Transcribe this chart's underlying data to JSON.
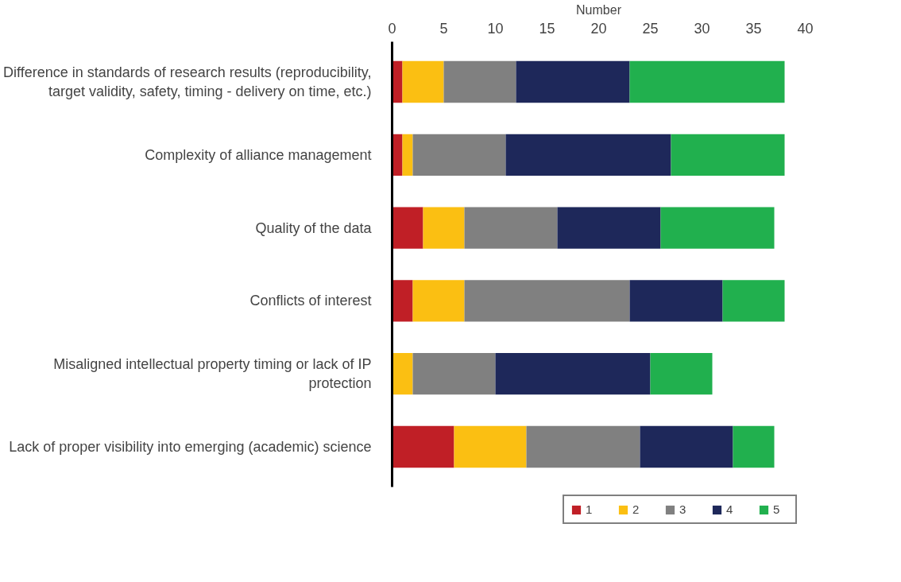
{
  "chart_data": {
    "type": "bar",
    "orientation": "horizontal",
    "stacked": true,
    "xlabel": "Number",
    "categories": [
      "Difference in standards of research results (reproducibility, target validity, safety, timing - delivery on time, etc.)",
      "Complexity of alliance management",
      "Quality of the data",
      "Conflicts of interest",
      "Misaligned intellectual property timing or lack of IP protection",
      "Lack of proper visibility into emerging (academic) science"
    ],
    "series": [
      {
        "name": "1",
        "color": "#c01f26",
        "values": [
          1,
          1,
          3,
          2,
          0,
          6
        ]
      },
      {
        "name": "2",
        "color": "#fbbf12",
        "values": [
          4,
          1,
          4,
          5,
          2,
          7
        ]
      },
      {
        "name": "3",
        "color": "#808080",
        "values": [
          7,
          9,
          9,
          16,
          8,
          11
        ]
      },
      {
        "name": "4",
        "color": "#1e285a",
        "values": [
          11,
          16,
          10,
          9,
          15,
          9
        ]
      },
      {
        "name": "5",
        "color": "#21b04e",
        "values": [
          15,
          11,
          11,
          6,
          6,
          4
        ]
      }
    ],
    "xlim": [
      0,
      40
    ],
    "xticks": [
      0,
      5,
      10,
      15,
      20,
      25,
      30,
      35,
      40
    ],
    "grid": false,
    "legend": "bottom"
  }
}
